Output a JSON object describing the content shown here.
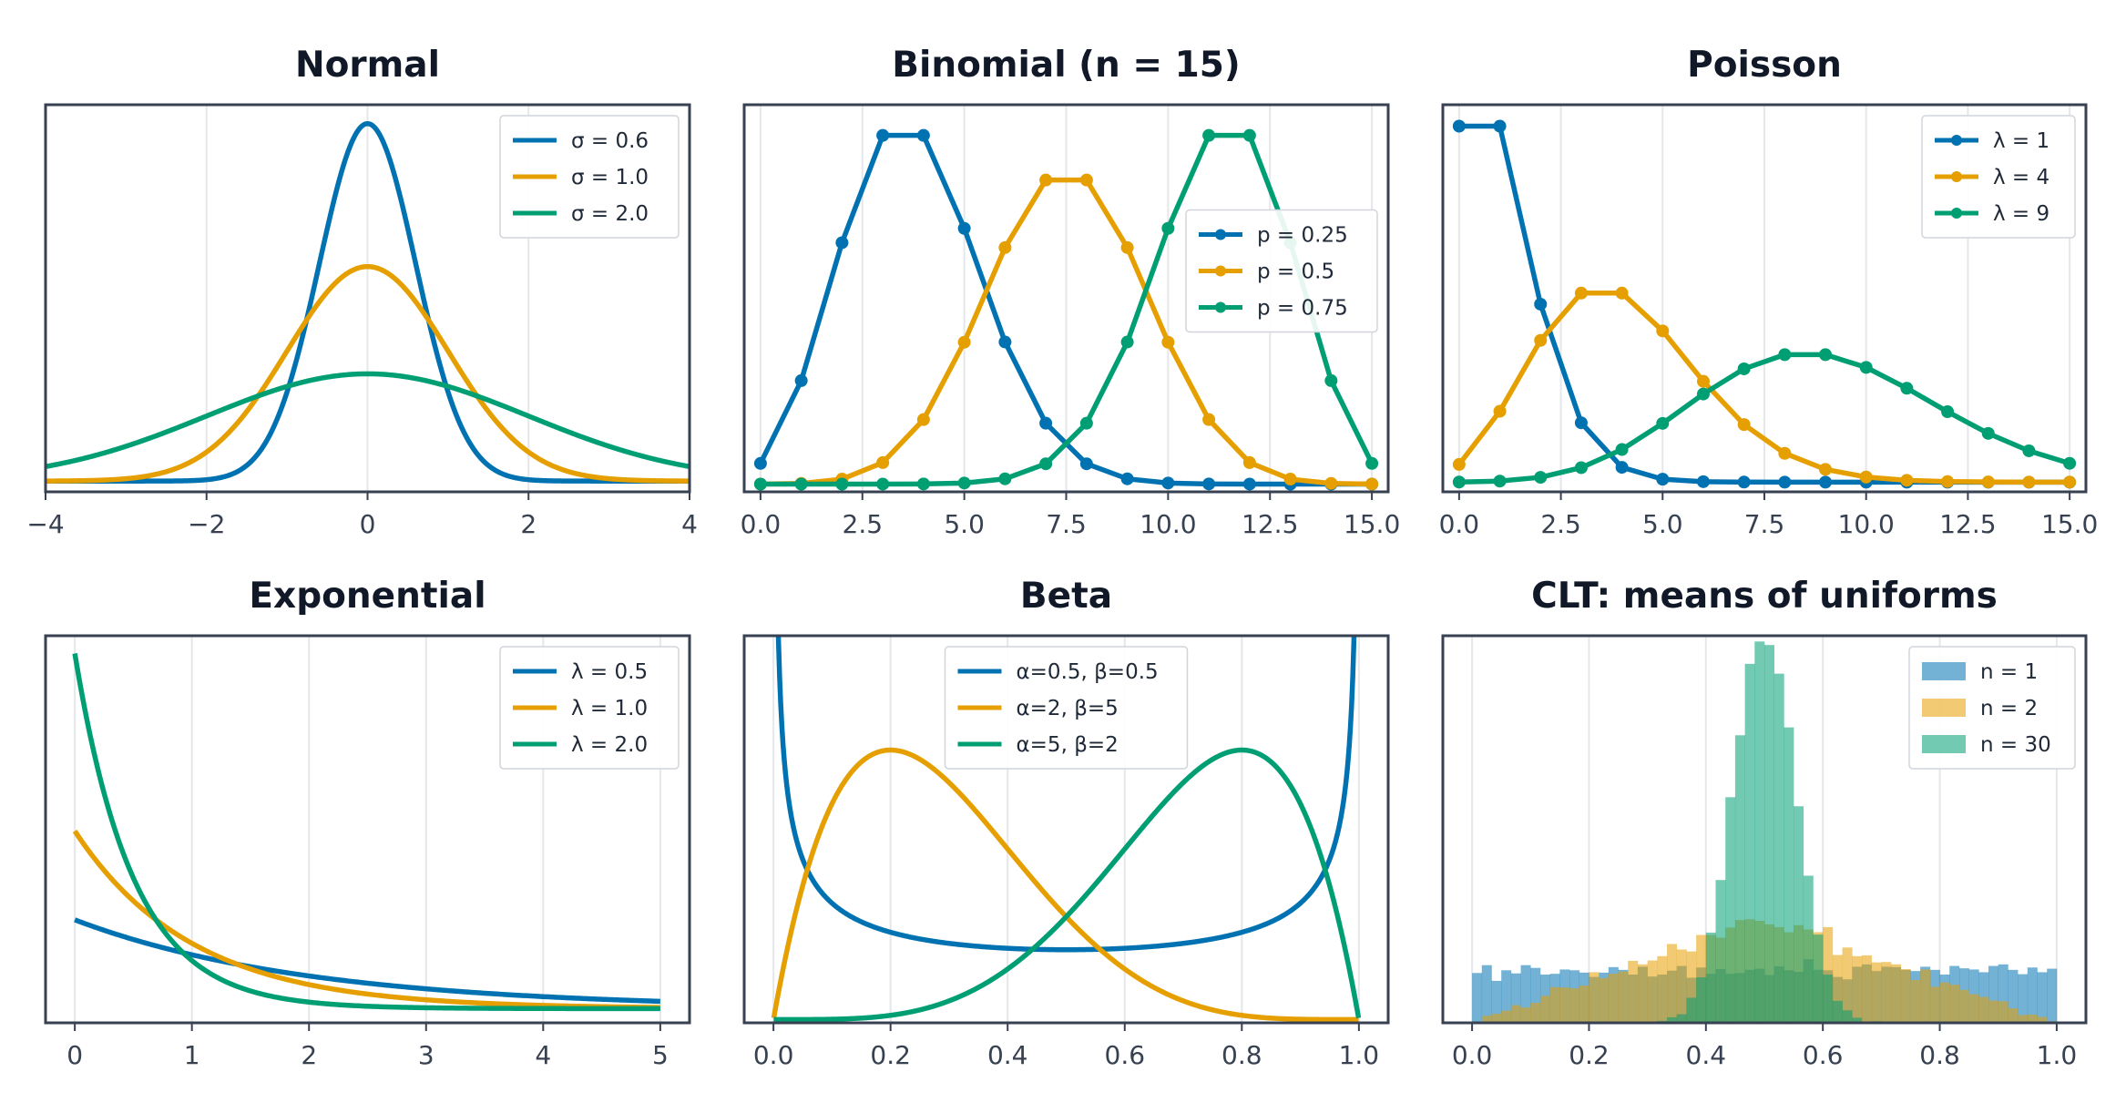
{
  "colors": {
    "blue": "#0072B2",
    "orange": "#E69F00",
    "green": "#009E73"
  },
  "chart_data": [
    {
      "title": "Normal",
      "type": "line",
      "dist": "normal",
      "xlim": [
        -4,
        4
      ],
      "ylim": [
        -0.02,
        0.7
      ],
      "grid": "vertical",
      "legend": "top-right",
      "xticks": [
        -4,
        -2,
        0,
        2,
        4
      ],
      "xtick_labels": [
        "−4",
        "−2",
        "0",
        "2",
        "4"
      ],
      "series": [
        {
          "name": "σ = 0.6",
          "sigma": 0.6,
          "color": "#0072B2"
        },
        {
          "name": "σ = 1.0",
          "sigma": 1.0,
          "color": "#E69F00"
        },
        {
          "name": "σ = 2.0",
          "sigma": 2.0,
          "color": "#009E73"
        }
      ]
    },
    {
      "title": "Binomial (n = 15)",
      "type": "line",
      "dist": "binomial",
      "n": 15,
      "markers": true,
      "xlim": [
        -0.4,
        15.4
      ],
      "ylim": [
        -0.005,
        0.245
      ],
      "grid": "vertical",
      "legend": "center-right",
      "xticks": [
        0,
        2.5,
        5,
        7.5,
        10,
        12.5,
        15
      ],
      "xtick_labels": [
        "0.0",
        "2.5",
        "5.0",
        "7.5",
        "10.0",
        "12.5",
        "15.0"
      ],
      "series": [
        {
          "name": "p = 0.25",
          "p": 0.25,
          "color": "#0072B2"
        },
        {
          "name": "p = 0.5",
          "p": 0.5,
          "color": "#E69F00"
        },
        {
          "name": "p = 0.75",
          "p": 0.75,
          "color": "#009E73"
        }
      ]
    },
    {
      "title": "Poisson",
      "type": "line",
      "dist": "poisson",
      "kmax": 15,
      "markers": true,
      "xlim": [
        -0.4,
        15.4
      ],
      "ylim": [
        -0.01,
        0.39
      ],
      "grid": "vertical",
      "legend": "top-right",
      "xticks": [
        0,
        2.5,
        5,
        7.5,
        10,
        12.5,
        15
      ],
      "xtick_labels": [
        "0.0",
        "2.5",
        "5.0",
        "7.5",
        "10.0",
        "12.5",
        "15.0"
      ],
      "series": [
        {
          "name": "λ = 1",
          "lambda": 1,
          "color": "#0072B2"
        },
        {
          "name": "λ = 4",
          "lambda": 4,
          "color": "#E69F00"
        },
        {
          "name": "λ = 9",
          "lambda": 9,
          "color": "#009E73"
        }
      ]
    },
    {
      "title": "Exponential",
      "type": "line",
      "dist": "exponential",
      "xlim": [
        -0.25,
        5.25
      ],
      "ylim": [
        -0.08,
        2.1
      ],
      "grid": "vertical",
      "legend": "top-right",
      "xticks": [
        0,
        1,
        2,
        3,
        4,
        5
      ],
      "xtick_labels": [
        "0",
        "1",
        "2",
        "3",
        "4",
        "5"
      ],
      "series": [
        {
          "name": "λ = 0.5",
          "lambda": 0.5,
          "color": "#0072B2"
        },
        {
          "name": "λ = 1.0",
          "lambda": 1.0,
          "color": "#E69F00"
        },
        {
          "name": "λ = 2.0",
          "lambda": 2.0,
          "color": "#009E73"
        }
      ]
    },
    {
      "title": "Beta",
      "type": "line",
      "dist": "beta",
      "xlim": [
        -0.05,
        1.05
      ],
      "ylim": [
        -0.03,
        3.5
      ],
      "grid": "vertical",
      "legend": "top-center",
      "xticks": [
        0,
        0.2,
        0.4,
        0.6,
        0.8,
        1.0
      ],
      "xtick_labels": [
        "0.0",
        "0.2",
        "0.4",
        "0.6",
        "0.8",
        "1.0"
      ],
      "series": [
        {
          "name": "α=0.5, β=0.5",
          "a": 0.5,
          "b": 0.5,
          "color": "#0072B2"
        },
        {
          "name": "α=2, β=5",
          "a": 2,
          "b": 5,
          "color": "#E69F00"
        },
        {
          "name": "α=5, β=2",
          "a": 5,
          "b": 2,
          "color": "#009E73"
        }
      ]
    },
    {
      "title": "CLT: means of uniforms",
      "type": "histogram",
      "dist": "clt",
      "xlim": [
        -0.05,
        1.05
      ],
      "ylim": [
        0,
        7.4
      ],
      "grid": "vertical",
      "legend": "top-right",
      "xticks": [
        0,
        0.2,
        0.4,
        0.6,
        0.8,
        1.0
      ],
      "xtick_labels": [
        "0.0",
        "0.2",
        "0.4",
        "0.6",
        "0.8",
        "1.0"
      ],
      "bins": 60,
      "opacity": 0.55,
      "series": [
        {
          "name": "n = 1",
          "n": 1,
          "color": "#0072B2"
        },
        {
          "name": "n = 2",
          "n": 2,
          "color": "#E69F00"
        },
        {
          "name": "n = 30",
          "n": 30,
          "color": "#009E73"
        }
      ]
    }
  ]
}
